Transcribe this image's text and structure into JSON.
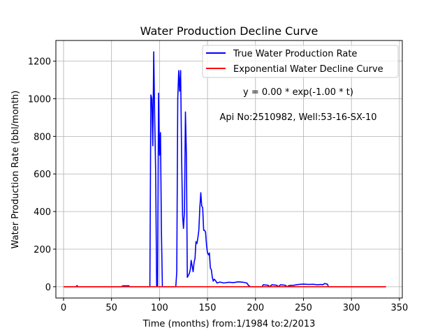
{
  "chart_data": {
    "type": "line",
    "title": "Water Production Decline Curve",
    "xlabel": "Time (months) from:1/1984 to:2/2013",
    "ylabel": "Water Production Rate (bbl/month)",
    "xlim": [
      -8,
      353
    ],
    "ylim": [
      -60,
      1310
    ],
    "x_ticks": [
      0,
      50,
      100,
      150,
      200,
      250,
      300,
      350
    ],
    "y_ticks": [
      0,
      200,
      400,
      600,
      800,
      1000,
      1200
    ],
    "grid": true,
    "legend_position": "top-right",
    "annotations": [
      "y = 0.00 * exp(-1.00 * t)",
      "Api No:2510982, Well:53-16-SX-10"
    ],
    "series": [
      {
        "name": "True Water Production Rate",
        "color": "#0000ff",
        "points": [
          [
            0,
            0
          ],
          [
            13,
            0
          ],
          [
            14,
            6
          ],
          [
            15,
            0
          ],
          [
            60,
            0
          ],
          [
            62,
            5
          ],
          [
            68,
            5
          ],
          [
            69,
            0
          ],
          [
            90,
            0
          ],
          [
            91,
            1020
          ],
          [
            92,
            1000
          ],
          [
            93,
            750
          ],
          [
            94,
            1250
          ],
          [
            95,
            900
          ],
          [
            96,
            600
          ],
          [
            97,
            0
          ],
          [
            98,
            0
          ],
          [
            99,
            1030
          ],
          [
            100,
            700
          ],
          [
            101,
            820
          ],
          [
            102,
            300
          ],
          [
            103,
            0
          ],
          [
            117,
            0
          ],
          [
            118,
            80
          ],
          [
            119,
            1000
          ],
          [
            120,
            1150
          ],
          [
            121,
            1040
          ],
          [
            122,
            1150
          ],
          [
            123,
            700
          ],
          [
            124,
            380
          ],
          [
            125,
            310
          ],
          [
            126,
            400
          ],
          [
            127,
            930
          ],
          [
            128,
            700
          ],
          [
            129,
            50
          ],
          [
            130,
            60
          ],
          [
            131,
            70
          ],
          [
            132,
            90
          ],
          [
            133,
            140
          ],
          [
            134,
            110
          ],
          [
            135,
            80
          ],
          [
            136,
            130
          ],
          [
            137,
            150
          ],
          [
            138,
            240
          ],
          [
            139,
            230
          ],
          [
            140,
            260
          ],
          [
            141,
            300
          ],
          [
            142,
            420
          ],
          [
            143,
            500
          ],
          [
            144,
            430
          ],
          [
            145,
            420
          ],
          [
            146,
            300
          ],
          [
            147,
            300
          ],
          [
            148,
            290
          ],
          [
            149,
            220
          ],
          [
            150,
            180
          ],
          [
            151,
            170
          ],
          [
            152,
            180
          ],
          [
            153,
            100
          ],
          [
            154,
            90
          ],
          [
            155,
            50
          ],
          [
            156,
            30
          ],
          [
            157,
            40
          ],
          [
            158,
            35
          ],
          [
            160,
            20
          ],
          [
            163,
            25
          ],
          [
            167,
            20
          ],
          [
            172,
            24
          ],
          [
            177,
            22
          ],
          [
            182,
            26
          ],
          [
            187,
            24
          ],
          [
            191,
            20
          ],
          [
            193,
            5
          ],
          [
            195,
            0
          ],
          [
            207,
            0
          ],
          [
            208,
            10
          ],
          [
            213,
            8
          ],
          [
            215,
            0
          ],
          [
            217,
            10
          ],
          [
            222,
            8
          ],
          [
            224,
            0
          ],
          [
            226,
            10
          ],
          [
            231,
            8
          ],
          [
            233,
            0
          ],
          [
            235,
            6
          ],
          [
            240,
            8
          ],
          [
            245,
            12
          ],
          [
            250,
            14
          ],
          [
            255,
            12
          ],
          [
            260,
            13
          ],
          [
            265,
            10
          ],
          [
            268,
            12
          ],
          [
            270,
            10
          ],
          [
            272,
            17
          ],
          [
            275,
            14
          ],
          [
            276,
            0
          ],
          [
            336,
            0
          ]
        ]
      },
      {
        "name": "Exponential Water Decline Curve",
        "color": "#ff0000",
        "points": [
          [
            0,
            0
          ],
          [
            336,
            0
          ]
        ]
      }
    ]
  }
}
